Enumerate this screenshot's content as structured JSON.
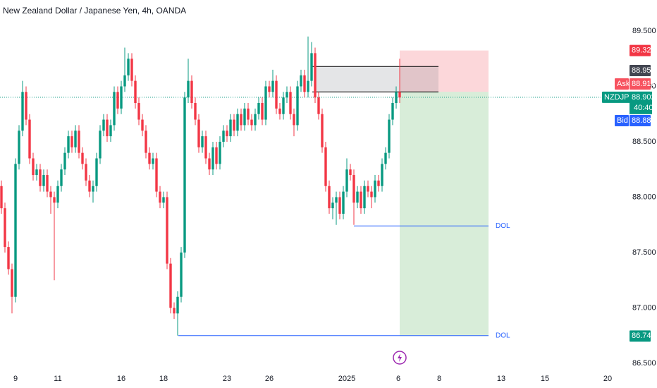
{
  "chart_data": {
    "type": "candlestick",
    "title": "New Zealand Dollar / Japanese Yen, 4h, OANDA",
    "up_color": "#089981",
    "down_color": "#f23645",
    "open": [
      88.1,
      87.9,
      87.55,
      87.35,
      87.1,
      88.3,
      88.6,
      88.95,
      88.7,
      88.35,
      88.2,
      88.25,
      88.1,
      88.2,
      88.05,
      88.0,
      87.95,
      88.1,
      88.25,
      88.4,
      88.55,
      88.45,
      88.6,
      88.4,
      88.3,
      88.15,
      88.05,
      88.1,
      88.35,
      88.6,
      88.7,
      88.55,
      88.65,
      88.95,
      88.8,
      89.0,
      89.1,
      89.25,
      89.05,
      88.85,
      88.7,
      88.6,
      88.4,
      88.3,
      88.35,
      88.05,
      87.95,
      88.0,
      87.4,
      87.0,
      86.95,
      87.1,
      87.5,
      88.9,
      89.05,
      88.85,
      88.7,
      88.45,
      88.55,
      88.35,
      88.25,
      88.45,
      88.3,
      88.5,
      88.6,
      88.55,
      88.7,
      88.6,
      88.75,
      88.65,
      88.8,
      88.7,
      88.65,
      88.75,
      88.85,
      88.7,
      89.0,
      88.95,
      89.05,
      88.8,
      88.75,
      88.9,
      88.95,
      88.75,
      88.65,
      89.0,
      89.1,
      88.95,
      89.05,
      89.3,
      88.9,
      88.75,
      88.45,
      88.1,
      87.9,
      87.95,
      88.0,
      87.85,
      88.05,
      88.25,
      88.2,
      87.95,
      88.05,
      87.9,
      88.1,
      88.05,
      88.0,
      88.15,
      88.1,
      88.3,
      88.4,
      88.7,
      88.85,
      88.95
    ],
    "high": [
      88.15,
      87.95,
      87.6,
      87.4,
      88.35,
      88.65,
      89.05,
      89.0,
      88.75,
      88.4,
      88.3,
      88.3,
      88.25,
      88.25,
      88.1,
      88.05,
      88.15,
      88.3,
      88.45,
      88.6,
      88.6,
      88.65,
      88.65,
      88.45,
      88.35,
      88.2,
      88.15,
      88.4,
      88.65,
      88.75,
      88.75,
      88.7,
      89.0,
      89.0,
      89.05,
      89.35,
      89.3,
      89.3,
      89.1,
      88.9,
      88.75,
      88.65,
      88.45,
      88.4,
      88.4,
      88.1,
      88.05,
      88.05,
      87.45,
      87.05,
      87.15,
      87.55,
      88.95,
      89.25,
      89.1,
      88.9,
      88.75,
      88.6,
      88.6,
      88.4,
      88.5,
      88.5,
      88.55,
      88.65,
      88.65,
      88.75,
      88.75,
      88.8,
      88.8,
      88.85,
      88.85,
      88.75,
      88.8,
      88.9,
      88.9,
      89.05,
      89.05,
      89.15,
      89.1,
      88.85,
      88.95,
      89.0,
      89.0,
      88.8,
      89.05,
      89.15,
      89.15,
      89.45,
      89.4,
      89.35,
      88.95,
      88.8,
      88.5,
      88.15,
      88.0,
      88.05,
      88.05,
      88.1,
      88.35,
      88.3,
      88.25,
      88.1,
      88.1,
      88.15,
      88.15,
      88.1,
      88.2,
      88.2,
      88.35,
      88.45,
      88.75,
      88.9,
      89.0,
      89.25
    ],
    "low": [
      87.85,
      87.5,
      87.3,
      86.95,
      87.05,
      88.25,
      88.55,
      88.65,
      88.3,
      88.15,
      88.15,
      88.05,
      88.05,
      88.0,
      87.85,
      87.25,
      87.9,
      88.05,
      88.2,
      88.35,
      88.4,
      88.4,
      88.35,
      88.25,
      88.1,
      88.0,
      87.95,
      88.05,
      88.3,
      88.55,
      88.5,
      88.5,
      88.6,
      88.75,
      88.75,
      88.95,
      89.05,
      89.0,
      88.8,
      88.65,
      88.55,
      88.35,
      88.25,
      88.25,
      88.0,
      87.9,
      87.9,
      87.35,
      86.95,
      86.9,
      86.75,
      87.05,
      87.45,
      88.85,
      88.8,
      88.65,
      88.4,
      88.4,
      88.3,
      88.2,
      88.2,
      88.25,
      88.25,
      88.45,
      88.5,
      88.5,
      88.55,
      88.55,
      88.6,
      88.6,
      88.65,
      88.6,
      88.6,
      88.7,
      88.65,
      88.65,
      88.9,
      88.9,
      88.75,
      88.7,
      88.7,
      88.85,
      88.7,
      88.55,
      88.6,
      88.95,
      88.9,
      88.9,
      89.0,
      88.85,
      88.7,
      88.4,
      88.05,
      87.85,
      87.8,
      87.75,
      87.8,
      87.8,
      88.0,
      88.15,
      87.75,
      87.9,
      87.85,
      87.85,
      88.0,
      87.9,
      87.95,
      88.05,
      88.05,
      88.25,
      88.35,
      88.65,
      88.8,
      88.85
    ],
    "close": [
      87.9,
      87.55,
      87.35,
      87.1,
      88.3,
      88.6,
      88.95,
      88.7,
      88.35,
      88.2,
      88.25,
      88.1,
      88.2,
      88.05,
      88.0,
      87.95,
      88.1,
      88.25,
      88.4,
      88.55,
      88.45,
      88.6,
      88.4,
      88.3,
      88.15,
      88.05,
      88.1,
      88.35,
      88.6,
      88.7,
      88.55,
      88.65,
      88.95,
      88.8,
      89.0,
      89.1,
      89.25,
      89.05,
      88.85,
      88.7,
      88.6,
      88.4,
      88.3,
      88.35,
      88.05,
      87.95,
      88.0,
      87.4,
      87.0,
      86.95,
      87.1,
      87.5,
      88.9,
      89.05,
      88.85,
      88.7,
      88.45,
      88.55,
      88.35,
      88.25,
      88.45,
      88.3,
      88.5,
      88.6,
      88.55,
      88.7,
      88.6,
      88.75,
      88.65,
      88.8,
      88.7,
      88.65,
      88.75,
      88.85,
      88.7,
      89.0,
      88.95,
      89.05,
      88.8,
      88.75,
      88.9,
      88.95,
      88.75,
      88.65,
      89.0,
      89.1,
      88.95,
      89.05,
      89.3,
      88.9,
      88.75,
      88.45,
      88.1,
      87.9,
      87.95,
      88.0,
      87.85,
      88.05,
      88.25,
      88.2,
      87.95,
      88.05,
      87.9,
      88.1,
      88.05,
      88.0,
      88.15,
      88.1,
      88.3,
      88.4,
      88.7,
      88.85,
      88.95,
      88.9
    ],
    "xlim": [
      -0.4,
      175.2
    ],
    "ylim": [
      86.436,
      89.78
    ],
    "xticks": [
      {
        "value": 4,
        "label": "9"
      },
      {
        "value": 16,
        "label": "11"
      },
      {
        "value": 34,
        "label": "16"
      },
      {
        "value": 46,
        "label": "18"
      },
      {
        "value": 64,
        "label": "23"
      },
      {
        "value": 76,
        "label": "26"
      },
      {
        "value": 98,
        "label": "2025"
      },
      {
        "value": 112.6,
        "label": "6"
      },
      {
        "value": 124.2,
        "label": "8"
      },
      {
        "value": 141.8,
        "label": "13"
      },
      {
        "value": 154.2,
        "label": "15"
      },
      {
        "value": 172,
        "label": "20"
      }
    ],
    "yticks": [
      {
        "value": 86.5,
        "label": "86.500"
      },
      {
        "value": 87,
        "label": "87.000"
      },
      {
        "value": 87.5,
        "label": "87.500"
      },
      {
        "value": 88,
        "label": "88.000"
      },
      {
        "value": 88.5,
        "label": "88.500"
      },
      {
        "value": 89,
        "label": "89.000"
      },
      {
        "value": 89.5,
        "label": "89.500"
      }
    ],
    "current_price": {
      "symbol": "NZDJPY",
      "value": 88.902,
      "countdown": "40:40"
    },
    "ask": {
      "label": "Ask",
      "value": 88.912
    },
    "bid": {
      "label": "Bid",
      "value": 88.884
    },
    "position": {
      "stop": 89.324,
      "entry": 88.951,
      "target": 86.746,
      "start": 113,
      "end": 138.2
    },
    "zone": {
      "top": 89.18,
      "bottom": 88.95,
      "start": 88.2,
      "end": 124
    },
    "levels": [
      {
        "label": "DOL",
        "value": 87.74,
        "start": 100,
        "end": 138.2
      },
      {
        "label": "DOL",
        "value": 86.75,
        "start": 50.2,
        "end": 138.2
      }
    ]
  }
}
